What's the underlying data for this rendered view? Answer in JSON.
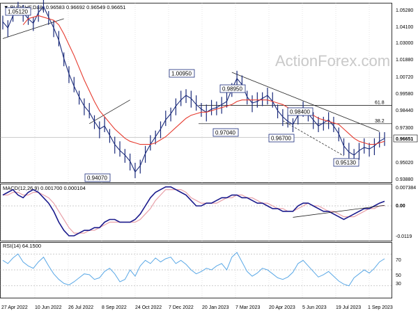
{
  "chart_data": [
    {
      "type": "candlestick",
      "title": "▼ EURCHF,Daily  0.96583 0.96692 0.96549 0.96651",
      "price_axis": [
        "1.05280",
        "1.04100",
        "1.03000",
        "1.01880",
        "1.00720",
        "0.99580",
        "0.98440",
        "0.97300",
        "0.96651",
        "0.95020",
        "0.93880"
      ],
      "ylim": [
        0.9373,
        1.0544
      ],
      "last_price": "0.96651",
      "watermark": "ActionForex.com",
      "annotations": [
        "1.05120",
        "1.00950",
        "0.98950",
        "0.98400",
        "0.97040",
        "0.96700",
        "0.95130",
        "0.94070"
      ],
      "fib_levels": [
        {
          "label": "61.8",
          "value": 0.9875
        },
        {
          "label": "38.2",
          "value": 0.9755
        }
      ],
      "series": [
        {
          "name": "price",
          "values": [
            1.042,
            1.038,
            1.046,
            1.051,
            1.048,
            1.044,
            1.041,
            1.048,
            1.052,
            1.045,
            1.038,
            1.03,
            1.018,
            1.008,
            1.0,
            0.993,
            0.987,
            0.983,
            0.977,
            0.972,
            0.974,
            0.968,
            0.962,
            0.958,
            0.955,
            0.951,
            0.944,
            0.948,
            0.956,
            0.962,
            0.967,
            0.972,
            0.978,
            0.982,
            0.987,
            0.991,
            0.994,
            0.992,
            0.988,
            0.985,
            0.983,
            0.985,
            0.986,
            0.988,
            0.99,
            0.998,
            1.005,
            1.001,
            0.993,
            0.989,
            0.99,
            0.992,
            0.994,
            0.99,
            0.984,
            0.98,
            0.977,
            0.975,
            0.981,
            0.984,
            0.982,
            0.978,
            0.974,
            0.976,
            0.978,
            0.974,
            0.969,
            0.961,
            0.957,
            0.955,
            0.958,
            0.96,
            0.959,
            0.961,
            0.964,
            0.966
          ]
        },
        {
          "name": "ma",
          "values": [
            null,
            null,
            null,
            null,
            1.04,
            1.044,
            1.045,
            1.046,
            1.045,
            1.044,
            1.043,
            1.04,
            1.034,
            1.027,
            1.02,
            1.012,
            1.004,
            0.997,
            0.99,
            0.984,
            0.98,
            0.976,
            0.972,
            0.969,
            0.966,
            0.964,
            0.963,
            0.962,
            0.962,
            0.962,
            0.963,
            0.965,
            0.967,
            0.97,
            0.973,
            0.976,
            0.979,
            0.981,
            0.982,
            0.983,
            0.983,
            0.984,
            0.985,
            0.986,
            0.987,
            0.988,
            0.99,
            0.991,
            0.991,
            0.991,
            0.991,
            0.991,
            0.991,
            0.99,
            0.989,
            0.988,
            0.986,
            0.984,
            0.983,
            0.982,
            0.982,
            0.981,
            0.979,
            0.978,
            0.977,
            0.976,
            0.975,
            0.972,
            0.969,
            0.966,
            0.964,
            0.963,
            0.962,
            0.962,
            0.963,
            0.964
          ]
        }
      ],
      "trendlines": [
        {
          "x": [
            0,
            12
          ],
          "y": [
            1.031,
            1.044
          ]
        },
        {
          "x": [
            17,
            25
          ],
          "y": [
            0.9755,
            0.991
          ]
        },
        {
          "x": [
            45,
            74
          ],
          "y": [
            1.009,
            0.9705
          ]
        },
        {
          "x": [
            55,
            67
          ],
          "y": [
            0.9775,
            0.9545
          ]
        }
      ]
    },
    {
      "type": "line",
      "title": "MACD(12,26,9) 0.001700 0.000104",
      "ylim": [
        -0.0128,
        0.0082
      ],
      "axis_labels": [
        "0.007384",
        "0.00",
        "-0.0119"
      ],
      "series": [
        {
          "name": "macd",
          "values": [
            0.004,
            0.005,
            0.006,
            0.004,
            0.003,
            0.005,
            0.006,
            0.005,
            0.003,
            0.001,
            -0.002,
            -0.006,
            -0.009,
            -0.011,
            -0.011,
            -0.01,
            -0.009,
            -0.009,
            -0.008,
            -0.008,
            -0.006,
            -0.005,
            -0.005,
            -0.006,
            -0.006,
            -0.006,
            -0.005,
            -0.003,
            0.0,
            0.003,
            0.005,
            0.006,
            0.007,
            0.007,
            0.006,
            0.005,
            0.004,
            0.002,
            0.0,
            0.0,
            0.001,
            0.001,
            0.002,
            0.003,
            0.003,
            0.004,
            0.004,
            0.003,
            0.003,
            0.002,
            0.001,
            0.001,
            0.0,
            -0.001,
            -0.001,
            -0.002,
            -0.002,
            -0.002,
            0.0,
            0.001,
            0.001,
            0.0,
            -0.001,
            -0.002,
            -0.002,
            -0.003,
            -0.004,
            -0.005,
            -0.004,
            -0.003,
            -0.002,
            -0.001,
            -0.001,
            0.0,
            0.001,
            0.0017
          ]
        },
        {
          "name": "signal",
          "values": [
            0.004,
            0.004,
            0.005,
            0.005,
            0.004,
            0.004,
            0.005,
            0.005,
            0.004,
            0.003,
            0.001,
            -0.002,
            -0.005,
            -0.008,
            -0.01,
            -0.01,
            -0.01,
            -0.009,
            -0.009,
            -0.008,
            -0.007,
            -0.006,
            -0.006,
            -0.006,
            -0.006,
            -0.006,
            -0.006,
            -0.005,
            -0.003,
            -0.001,
            0.002,
            0.004,
            0.006,
            0.006,
            0.006,
            0.006,
            0.005,
            0.003,
            0.002,
            0.001,
            0.001,
            0.001,
            0.001,
            0.002,
            0.003,
            0.003,
            0.004,
            0.004,
            0.003,
            0.003,
            0.002,
            0.001,
            0.001,
            0.0,
            -0.001,
            -0.001,
            -0.002,
            -0.002,
            -0.001,
            0.0,
            0.001,
            0.0,
            0.0,
            -0.001,
            -0.002,
            -0.002,
            -0.003,
            -0.004,
            -0.004,
            -0.004,
            -0.003,
            -0.002,
            -0.001,
            -0.001,
            0.0,
            0.0001
          ]
        }
      ]
    },
    {
      "type": "line",
      "title": "RSI(14) 64.1500",
      "ylim": [
        15,
        85
      ],
      "axis_labels": [
        "70",
        "50",
        "30"
      ],
      "series": [
        {
          "name": "rsi",
          "values": [
            62,
            58,
            65,
            70,
            60,
            55,
            52,
            60,
            66,
            55,
            45,
            38,
            33,
            31,
            35,
            40,
            45,
            44,
            38,
            40,
            48,
            52,
            45,
            35,
            38,
            50,
            42,
            55,
            62,
            58,
            65,
            60,
            64,
            66,
            58,
            62,
            57,
            50,
            45,
            48,
            52,
            50,
            55,
            58,
            50,
            66,
            72,
            60,
            48,
            42,
            46,
            52,
            50,
            45,
            40,
            38,
            41,
            47,
            58,
            62,
            55,
            48,
            41,
            44,
            48,
            42,
            36,
            32,
            30,
            40,
            45,
            50,
            46,
            52,
            60,
            64
          ]
        }
      ]
    }
  ],
  "time_axis": [
    "27 Apr 2022",
    "10 Jun 2022",
    "26 Jul 2022",
    "8 Sep 2022",
    "24 Oct 2022",
    "7 Dec 2022",
    "20 Jan 2023",
    "7 Mar 2023",
    "20 Apr 2023",
    "5 Jun 2023",
    "19 Jul 2023",
    "1 Sep 2023"
  ],
  "colors": {
    "price": "#1a2a7a",
    "ma": "#e63a2e",
    "macd": "#1a1a8c",
    "signal": "#e8a0a8",
    "rsi": "#5aa8e6",
    "trend": "#222222",
    "grid": "#bdbdbd",
    "last_price": "#9a9a9a"
  }
}
